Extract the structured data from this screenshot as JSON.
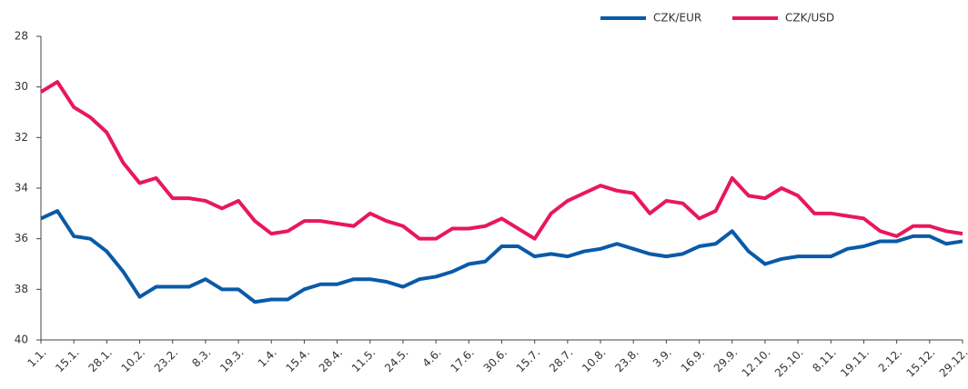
{
  "chart_data": {
    "type": "line",
    "categories": [
      "1.1.",
      null,
      "15.1.",
      null,
      "28.1.",
      null,
      "10.2.",
      null,
      "23.2.",
      null,
      "8.3.",
      null,
      "19.3.",
      null,
      "1.4.",
      null,
      "15.4.",
      null,
      "28.4.",
      null,
      "11.5.",
      null,
      "24.5.",
      null,
      "4.6.",
      null,
      "17.6.",
      null,
      "30.6.",
      null,
      "15.7.",
      null,
      "28.7.",
      null,
      "10.8.",
      null,
      "23.8.",
      null,
      "3.9.",
      null,
      "16.9.",
      null,
      "29.9.",
      null,
      "12.10.",
      null,
      "25.10.",
      null,
      "8.11.",
      null,
      "19.11.",
      null,
      "2.12.",
      null,
      "15.12.",
      null,
      "29.12."
    ],
    "series": [
      {
        "name": "CZK/EUR",
        "color": "#0a5aa8",
        "values": [
          35.2,
          34.9,
          35.9,
          36.0,
          36.5,
          37.3,
          38.3,
          37.9,
          37.9,
          37.9,
          37.6,
          38.0,
          38.0,
          38.5,
          38.4,
          38.4,
          38.0,
          37.8,
          37.8,
          37.6,
          37.6,
          37.7,
          37.9,
          37.6,
          37.5,
          37.3,
          37.0,
          36.9,
          36.3,
          36.3,
          36.7,
          36.6,
          36.7,
          36.5,
          36.4,
          36.2,
          36.4,
          36.6,
          36.7,
          36.6,
          36.3,
          36.2,
          35.7,
          36.5,
          37.0,
          36.8,
          36.7,
          36.7,
          36.7,
          36.4,
          36.3,
          36.1,
          36.1,
          35.9,
          35.9,
          36.2,
          36.1
        ]
      },
      {
        "name": "CZK/USD",
        "color": "#e8175d",
        "values": [
          30.2,
          29.8,
          30.8,
          31.2,
          31.8,
          33.0,
          33.8,
          33.6,
          34.4,
          34.4,
          34.5,
          34.8,
          34.5,
          35.3,
          35.8,
          35.7,
          35.3,
          35.3,
          35.4,
          35.5,
          35.0,
          35.3,
          35.5,
          36.0,
          36.0,
          35.6,
          35.6,
          35.5,
          35.2,
          35.6,
          36.0,
          35.0,
          34.5,
          34.2,
          33.9,
          34.1,
          34.2,
          35.0,
          34.5,
          34.6,
          35.2,
          34.9,
          33.6,
          34.3,
          34.4,
          34.0,
          34.3,
          35.0,
          35.0,
          35.1,
          35.2,
          35.7,
          35.9,
          35.5,
          35.5,
          35.7,
          35.8
        ]
      }
    ],
    "ylim": [
      28,
      40
    ],
    "y_inverted": true,
    "yticks": [
      28,
      30,
      32,
      34,
      36,
      38,
      40
    ],
    "grid": false,
    "legend": "top-right"
  }
}
